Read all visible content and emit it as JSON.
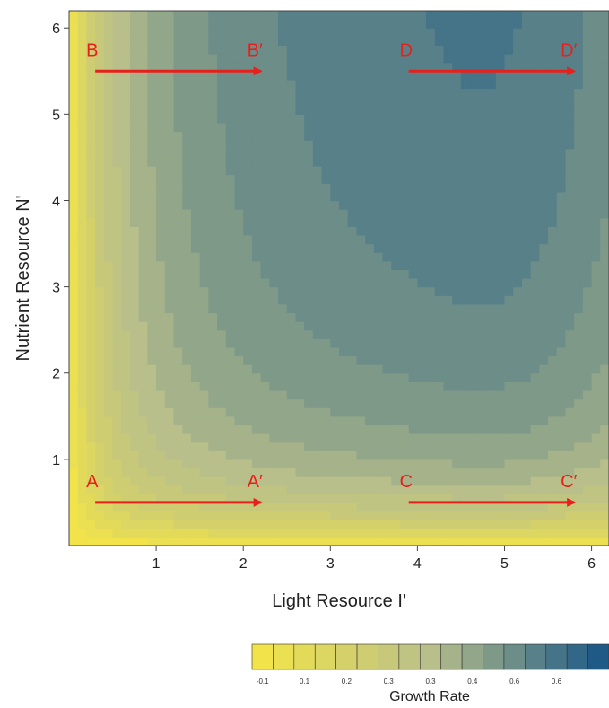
{
  "chart_data": {
    "type": "heatmap",
    "title": "",
    "xlabel": "Light Resource I'",
    "ylabel": "Nutrient Resource N'",
    "xlim": [
      0,
      6.2
    ],
    "ylim": [
      0,
      6.2
    ],
    "xticks": [
      1,
      2,
      3,
      4,
      5,
      6
    ],
    "yticks": [
      1,
      2,
      3,
      4,
      5,
      6
    ],
    "colorbar": {
      "title": "Growth Rate",
      "tick_labels": [
        "-0.1",
        "0.1",
        "0.2",
        "0.3",
        "0.3",
        "0.4",
        "0.6",
        "0.6"
      ],
      "low_color": "#f2e34a",
      "mid_color": "#b8bf8a",
      "high_color": "#1f5a86",
      "levels": 17
    },
    "annotations": [
      {
        "start_label": "A",
        "end_label": "A′",
        "x_start": 0.3,
        "x_end": 2.2,
        "y": 0.5
      },
      {
        "start_label": "B",
        "end_label": "B′",
        "x_start": 0.3,
        "x_end": 2.2,
        "y": 5.5
      },
      {
        "start_label": "C",
        "end_label": "C′",
        "x_start": 3.9,
        "x_end": 5.8,
        "y": 0.5
      },
      {
        "start_label": "D",
        "end_label": "D′",
        "x_start": 3.9,
        "x_end": 5.8,
        "y": 5.5
      }
    ],
    "arrow_color": "#e8201c",
    "grid": false
  }
}
